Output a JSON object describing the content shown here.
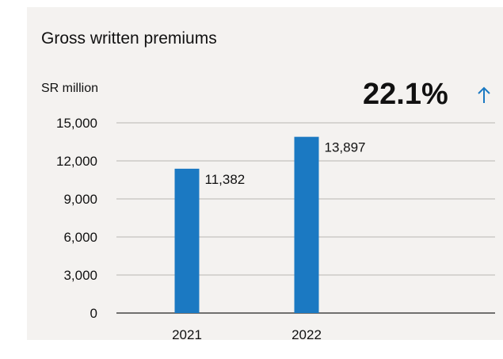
{
  "header": {
    "title": "Gross written premiums",
    "unit": "SR million",
    "growth": "22.1%"
  },
  "colors": {
    "bar": "#1b79c2",
    "arrow": "#1b79c2",
    "card_bg": "#f4f2f0"
  },
  "icons": {
    "growth_arrow": "arrow-up-icon"
  },
  "chart_data": {
    "type": "bar",
    "title": "Gross written premiums",
    "ylabel": "SR million",
    "categories": [
      "2021",
      "2022"
    ],
    "values": [
      11382,
      13897
    ],
    "value_labels": [
      "11,382",
      "13,897"
    ],
    "ylim": [
      0,
      15000
    ],
    "yticks": [
      0,
      3000,
      6000,
      9000,
      12000,
      15000
    ],
    "ytick_labels": [
      "0",
      "3,000",
      "6,000",
      "9,000",
      "12,000",
      "15,000"
    ],
    "grid": true,
    "legend": "none"
  }
}
